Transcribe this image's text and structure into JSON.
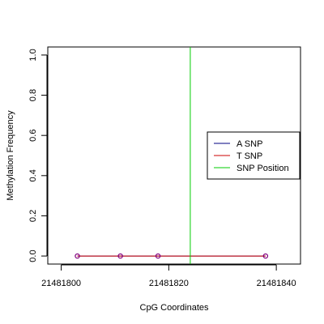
{
  "chart_data": {
    "type": "line",
    "title": "",
    "xlabel": "CpG Coordinates",
    "ylabel": "Methylation Frequency",
    "xlim": [
      21481797.5,
      21481844.5
    ],
    "ylim": [
      -0.04,
      1.04
    ],
    "x_ticks": [
      21481800,
      21481820,
      21481840
    ],
    "x_tick_labels": [
      "21481800",
      "21481820",
      "21481840"
    ],
    "y_ticks": [
      0.0,
      0.2,
      0.4,
      0.6,
      0.8,
      1.0
    ],
    "y_tick_labels": [
      "0.0",
      "0.2",
      "0.4",
      "0.6",
      "0.8",
      "1.0"
    ],
    "grid": false,
    "legend_position": "right",
    "series": [
      {
        "name": "A SNP",
        "color": "#000080",
        "x": [
          21481803,
          21481811,
          21481818,
          21481838
        ],
        "y": [
          0,
          0,
          0,
          0
        ],
        "markers": false
      },
      {
        "name": "T SNP",
        "color": "#cc0000",
        "x": [
          21481803,
          21481811,
          21481818,
          21481838
        ],
        "y": [
          0,
          0,
          0,
          0
        ],
        "markers": true,
        "marker_color": "#800080"
      },
      {
        "name": "SNP Position",
        "color": "#00cc00",
        "vline_x": 21481824
      }
    ]
  }
}
